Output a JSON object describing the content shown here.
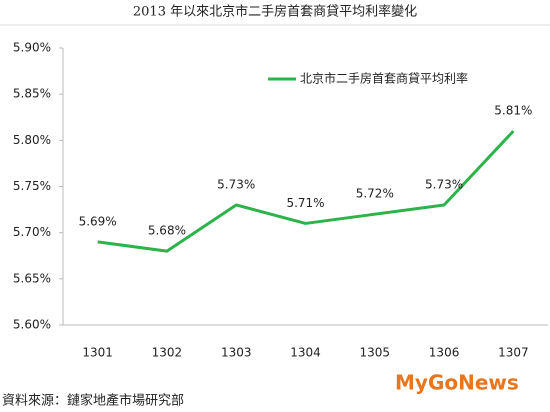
{
  "chart_data": {
    "type": "line",
    "title": "2013 年以來北京市二手房首套商貸平均利率變化",
    "categories": [
      "1301",
      "1302",
      "1303",
      "1304",
      "1305",
      "1306",
      "1307"
    ],
    "series": [
      {
        "name": "北京市二手房首套商貸平均利率",
        "color": "#2db34a",
        "values": [
          5.69,
          5.68,
          5.73,
          5.71,
          5.72,
          5.73,
          5.81
        ],
        "value_labels": [
          "5.69%",
          "5.68%",
          "5.73%",
          "5.71%",
          "5.72%",
          "5.73%",
          "5.81%"
        ]
      }
    ],
    "ylim": [
      5.6,
      5.9
    ],
    "yticks": [
      {
        "value": 5.6,
        "label": "5.60%"
      },
      {
        "value": 5.65,
        "label": "5.65%"
      },
      {
        "value": 5.7,
        "label": "5.70%"
      },
      {
        "value": 5.75,
        "label": "5.75%"
      },
      {
        "value": 5.8,
        "label": "5.80%"
      },
      {
        "value": 5.85,
        "label": "5.85%"
      },
      {
        "value": 5.9,
        "label": "5.90%"
      }
    ],
    "grid": false,
    "legend": "top-right",
    "source": "資料來源：鏈家地產市場研究部",
    "watermark": "MyGoNews"
  }
}
